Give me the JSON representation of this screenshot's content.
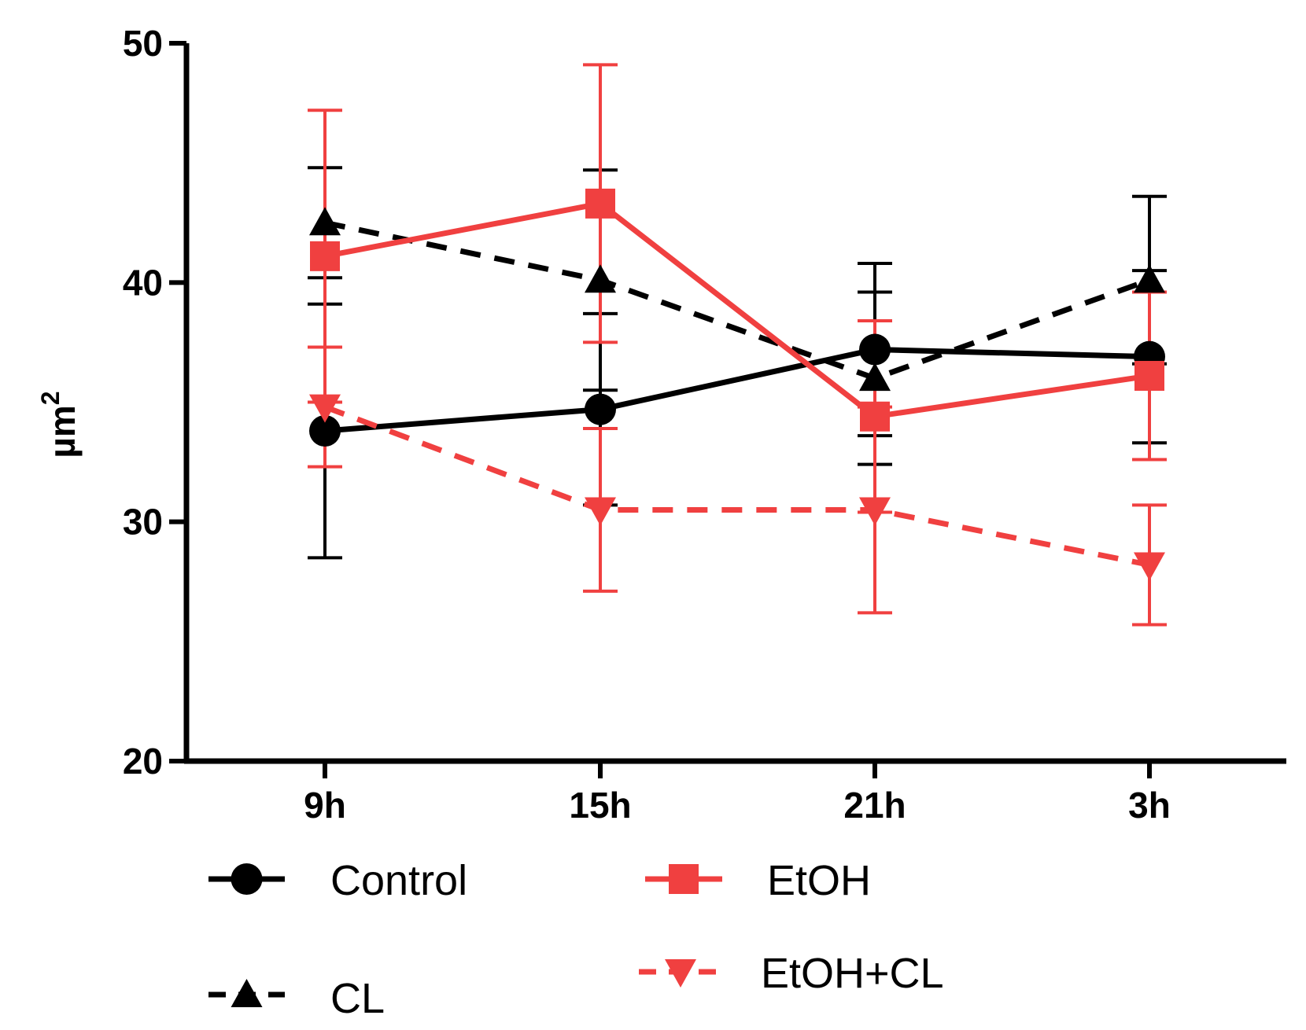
{
  "chart_data": {
    "type": "line",
    "title": "",
    "xlabel": "",
    "ylabel": "µm",
    "ylabel_superscript": "2",
    "categories": [
      "9h",
      "15h",
      "21h",
      "3h"
    ],
    "ylim": [
      20,
      50
    ],
    "yticks": [
      "20",
      "30",
      "40",
      "50"
    ],
    "grid": false,
    "legend_position": "bottom",
    "series": [
      {
        "name": "Control",
        "color": "#000000",
        "line": "solid",
        "marker": "circle",
        "values": [
          33.8,
          34.7,
          37.2,
          36.9
        ],
        "error": [
          5.3,
          4.0,
          3.6,
          3.6
        ]
      },
      {
        "name": "EtOH",
        "color": "#f04040",
        "line": "solid",
        "marker": "square",
        "values": [
          41.1,
          43.3,
          34.4,
          36.1
        ],
        "error": [
          6.1,
          5.8,
          4.0,
          3.5
        ]
      },
      {
        "name": "CL",
        "color": "#000000",
        "line": "dashed",
        "marker": "triangle-up",
        "values": [
          42.5,
          40.1,
          36.0,
          40.1
        ],
        "error": [
          2.3,
          4.6,
          3.6,
          3.5
        ]
      },
      {
        "name": "EtOH+CL",
        "color": "#f04040",
        "line": "dashed",
        "marker": "triangle-down",
        "values": [
          34.8,
          30.5,
          30.5,
          28.2
        ],
        "error": [
          2.5,
          3.4,
          4.3,
          2.5
        ]
      }
    ]
  }
}
